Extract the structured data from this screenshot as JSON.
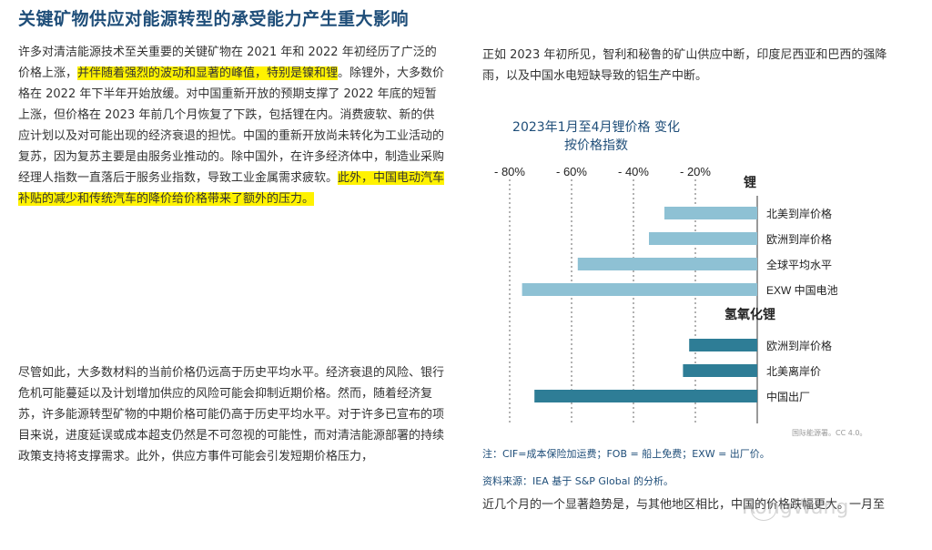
{
  "title": "关键矿物供应对能源转型的承受能力产生重大影响",
  "para1": {
    "text_a": "许多对清洁能源技术至关重要的关键矿物在 2021 年和 2022 年初经历了广泛的价格上涨，",
    "hl_a": "并伴随着强烈的波动和显著的峰值，特别是镍和锂",
    "text_b": "。除锂外，大多数价格在 2022 年下半年开始放缓。对中国重新开放的预期支撑了 2022 年底的短暂上涨，但价格在 2023 年前几个月恢复了下跌，包括锂在内。消费疲软、新的供应计划以及对可能出现的经济衰退的担忧。中国的重新开放尚未转化为工业活动的复苏，因为复苏主要是由服务业推动的。除中国外，在许多经济体中，制造业采购经理人指数一直落后于服务业指数，导致工业金属需求疲软。",
    "hl_b": "此外，中国电动汽车补贴的减少和传统汽车的降价给价格带来了额外的压力。"
  },
  "para2": "尽管如此，大多数材料的当前价格仍远高于历史平均水平。经济衰退的风险、银行危机可能蔓延以及计划增加供应的风险可能会抑制近期价格。然而，随着经济复苏，许多能源转型矿物的中期价格可能仍高于历史平均水平。对于许多已宣布的项目来说，进度延误或成本超支仍然是不可忽视的可能性，而对清洁能源部署的持续政策支持将支撑需求。此外，供应方事件可能会引发短期价格压力，",
  "para3": "正如 2023 年初所见，智利和秘鲁的矿山供应中断，印度尼西亚和巴西的强降雨，以及中国水电短缺导致的铝生产中断。",
  "para4": "近几个月的一个显著趋势是，与其他地区相比，中国的价格跌幅更大。一月至",
  "chart_title_1": "2023年1月至4月锂价格 变化",
  "chart_title_2": "按价格指数",
  "note1": "注：CIF=成本保险加运费；FOB = 船上免费；EXW = 出厂价。",
  "note2": "资料来源：IEA 基于 S&P Global 的分析。",
  "license": "国际能源署。CC 4.0。",
  "watermark": "RongWang",
  "colors": {
    "lithium": "#8ec1d4",
    "hydroxide": "#2e7d96",
    "title": "#1f4e79"
  },
  "chart_data": {
    "type": "bar",
    "orientation": "horizontal",
    "xlim": [
      -80,
      0
    ],
    "ticks": [
      {
        "label": "- 80%",
        "value": -80
      },
      {
        "label": "- 60%",
        "value": -60
      },
      {
        "label": "- 40%",
        "value": -40
      },
      {
        "label": "- 20%",
        "value": -20
      }
    ],
    "grid": "dashed vertical",
    "groups": [
      {
        "name": "锂",
        "color": "#8ec1d4",
        "bars": [
          {
            "label": "北美到岸价格",
            "value": -30
          },
          {
            "label": "欧洲到岸价格",
            "value": -35
          },
          {
            "label": "全球平均水平",
            "value": -58
          },
          {
            "label": "EXW 中国电池",
            "value": -76
          }
        ]
      },
      {
        "name": "氢氧化锂",
        "color": "#2e7d96",
        "bars": [
          {
            "label": "欧洲到岸价格",
            "value": -22
          },
          {
            "label": "北美离岸价",
            "value": -24
          },
          {
            "label": "中国出厂",
            "value": -72
          }
        ]
      }
    ]
  }
}
